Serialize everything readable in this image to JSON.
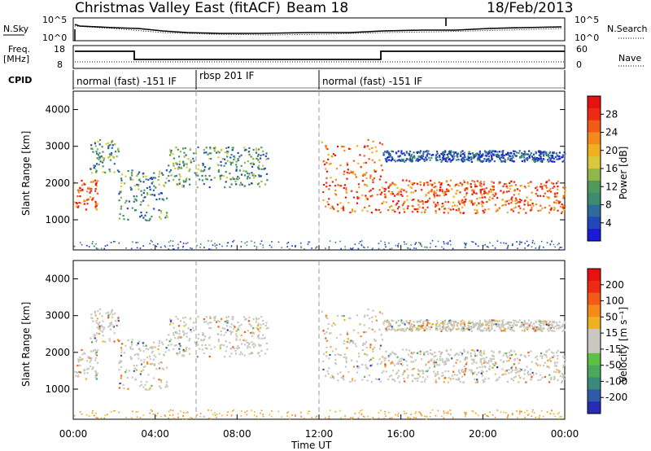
{
  "header": {
    "title": "Christmas Valley East (fitACF)",
    "beam": "Beam 18",
    "date": "18/Feb/2013"
  },
  "top_panels": {
    "nsky_label": "N.Sky",
    "nsky_ticks": [
      "10^5",
      "10^0"
    ],
    "nsearch_label": "N.Search",
    "nsearch_ticks": [
      "10^5",
      "10^0"
    ],
    "freq_label_1": "Freq.",
    "freq_label_2": "[MHz]",
    "freq_ticks": [
      "18",
      "8"
    ],
    "nave_label": "Nave",
    "nave_ticks": [
      "60",
      "0"
    ],
    "cpid_label": "CPID",
    "cpid_segments": [
      {
        "label": "normal (fast) -151 IF",
        "start_hour": 0,
        "end_hour": 6.1
      },
      {
        "label": "rbsp 201 IF",
        "start_hour": 6.1,
        "end_hour": 12
      },
      {
        "label": "normal (fast) -151 IF",
        "start_hour": 12,
        "end_hour": 24
      }
    ]
  },
  "colors": {
    "power_scale": [
      "#1a1ad8",
      "#2147b8",
      "#2e6b9a",
      "#3d8c6e",
      "#4f9a5a",
      "#8fb848",
      "#d9c83a",
      "#f0b020",
      "#f58a1a",
      "#f25a16",
      "#ee2a14",
      "#e81010"
    ],
    "velocity_scale": [
      "#2a2ab8",
      "#2e5aa8",
      "#3a8a7a",
      "#4aa85a",
      "#5ec040",
      "#c8c8c0",
      "#c8c8c0",
      "#f0b020",
      "#f58a1a",
      "#f25a16",
      "#ee2a14",
      "#e81010"
    ]
  },
  "chart_data": {
    "type": "heatmap",
    "x_axis": {
      "label": "Time UT",
      "ticks": [
        "00:00",
        "04:00",
        "08:00",
        "12:00",
        "16:00",
        "20:00",
        "00:00"
      ],
      "range_hours": [
        0,
        24
      ]
    },
    "panels": [
      {
        "name": "power",
        "ylabel": "Slant Range [km]",
        "yticks": [
          "4000",
          "3000",
          "2000",
          "1000"
        ],
        "ylim": [
          180,
          4500
        ],
        "colorbar_label": "Power [dB]",
        "colorbar_ticks": [
          "28",
          "24",
          "20",
          "16",
          "12",
          "8",
          "4"
        ],
        "colorbar_range": [
          0,
          30
        ]
      },
      {
        "name": "velocity",
        "ylabel": "Slant Range [km]",
        "yticks": [
          "4000",
          "3000",
          "2000",
          "1000"
        ],
        "ylim": [
          180,
          4500
        ],
        "colorbar_label": "Velocity [m s⁻¹]",
        "colorbar_ticks": [
          "200",
          "100",
          "50",
          "15",
          "-15",
          "-50",
          "-100",
          "-200"
        ],
        "colorbar_range": [
          -250,
          250
        ]
      }
    ],
    "scatter_regions": [
      {
        "t": [
          0.0,
          1.2
        ],
        "r": [
          1300,
          2100
        ],
        "power": "high"
      },
      {
        "t": [
          0.8,
          2.2
        ],
        "r": [
          2300,
          3200
        ],
        "power": "mid"
      },
      {
        "t": [
          2.2,
          4.6
        ],
        "r": [
          1000,
          2400
        ],
        "power": "mid"
      },
      {
        "t": [
          4.6,
          9.5
        ],
        "r": [
          1900,
          3000
        ],
        "power": "mid"
      },
      {
        "t": [
          12.1,
          15.1
        ],
        "r": [
          1200,
          3200
        ],
        "power": "high"
      },
      {
        "t": [
          15.1,
          24.0
        ],
        "r": [
          1200,
          2100
        ],
        "power": "high"
      },
      {
        "t": [
          15.1,
          24.0
        ],
        "r": [
          2600,
          2900
        ],
        "power": "low"
      }
    ]
  }
}
